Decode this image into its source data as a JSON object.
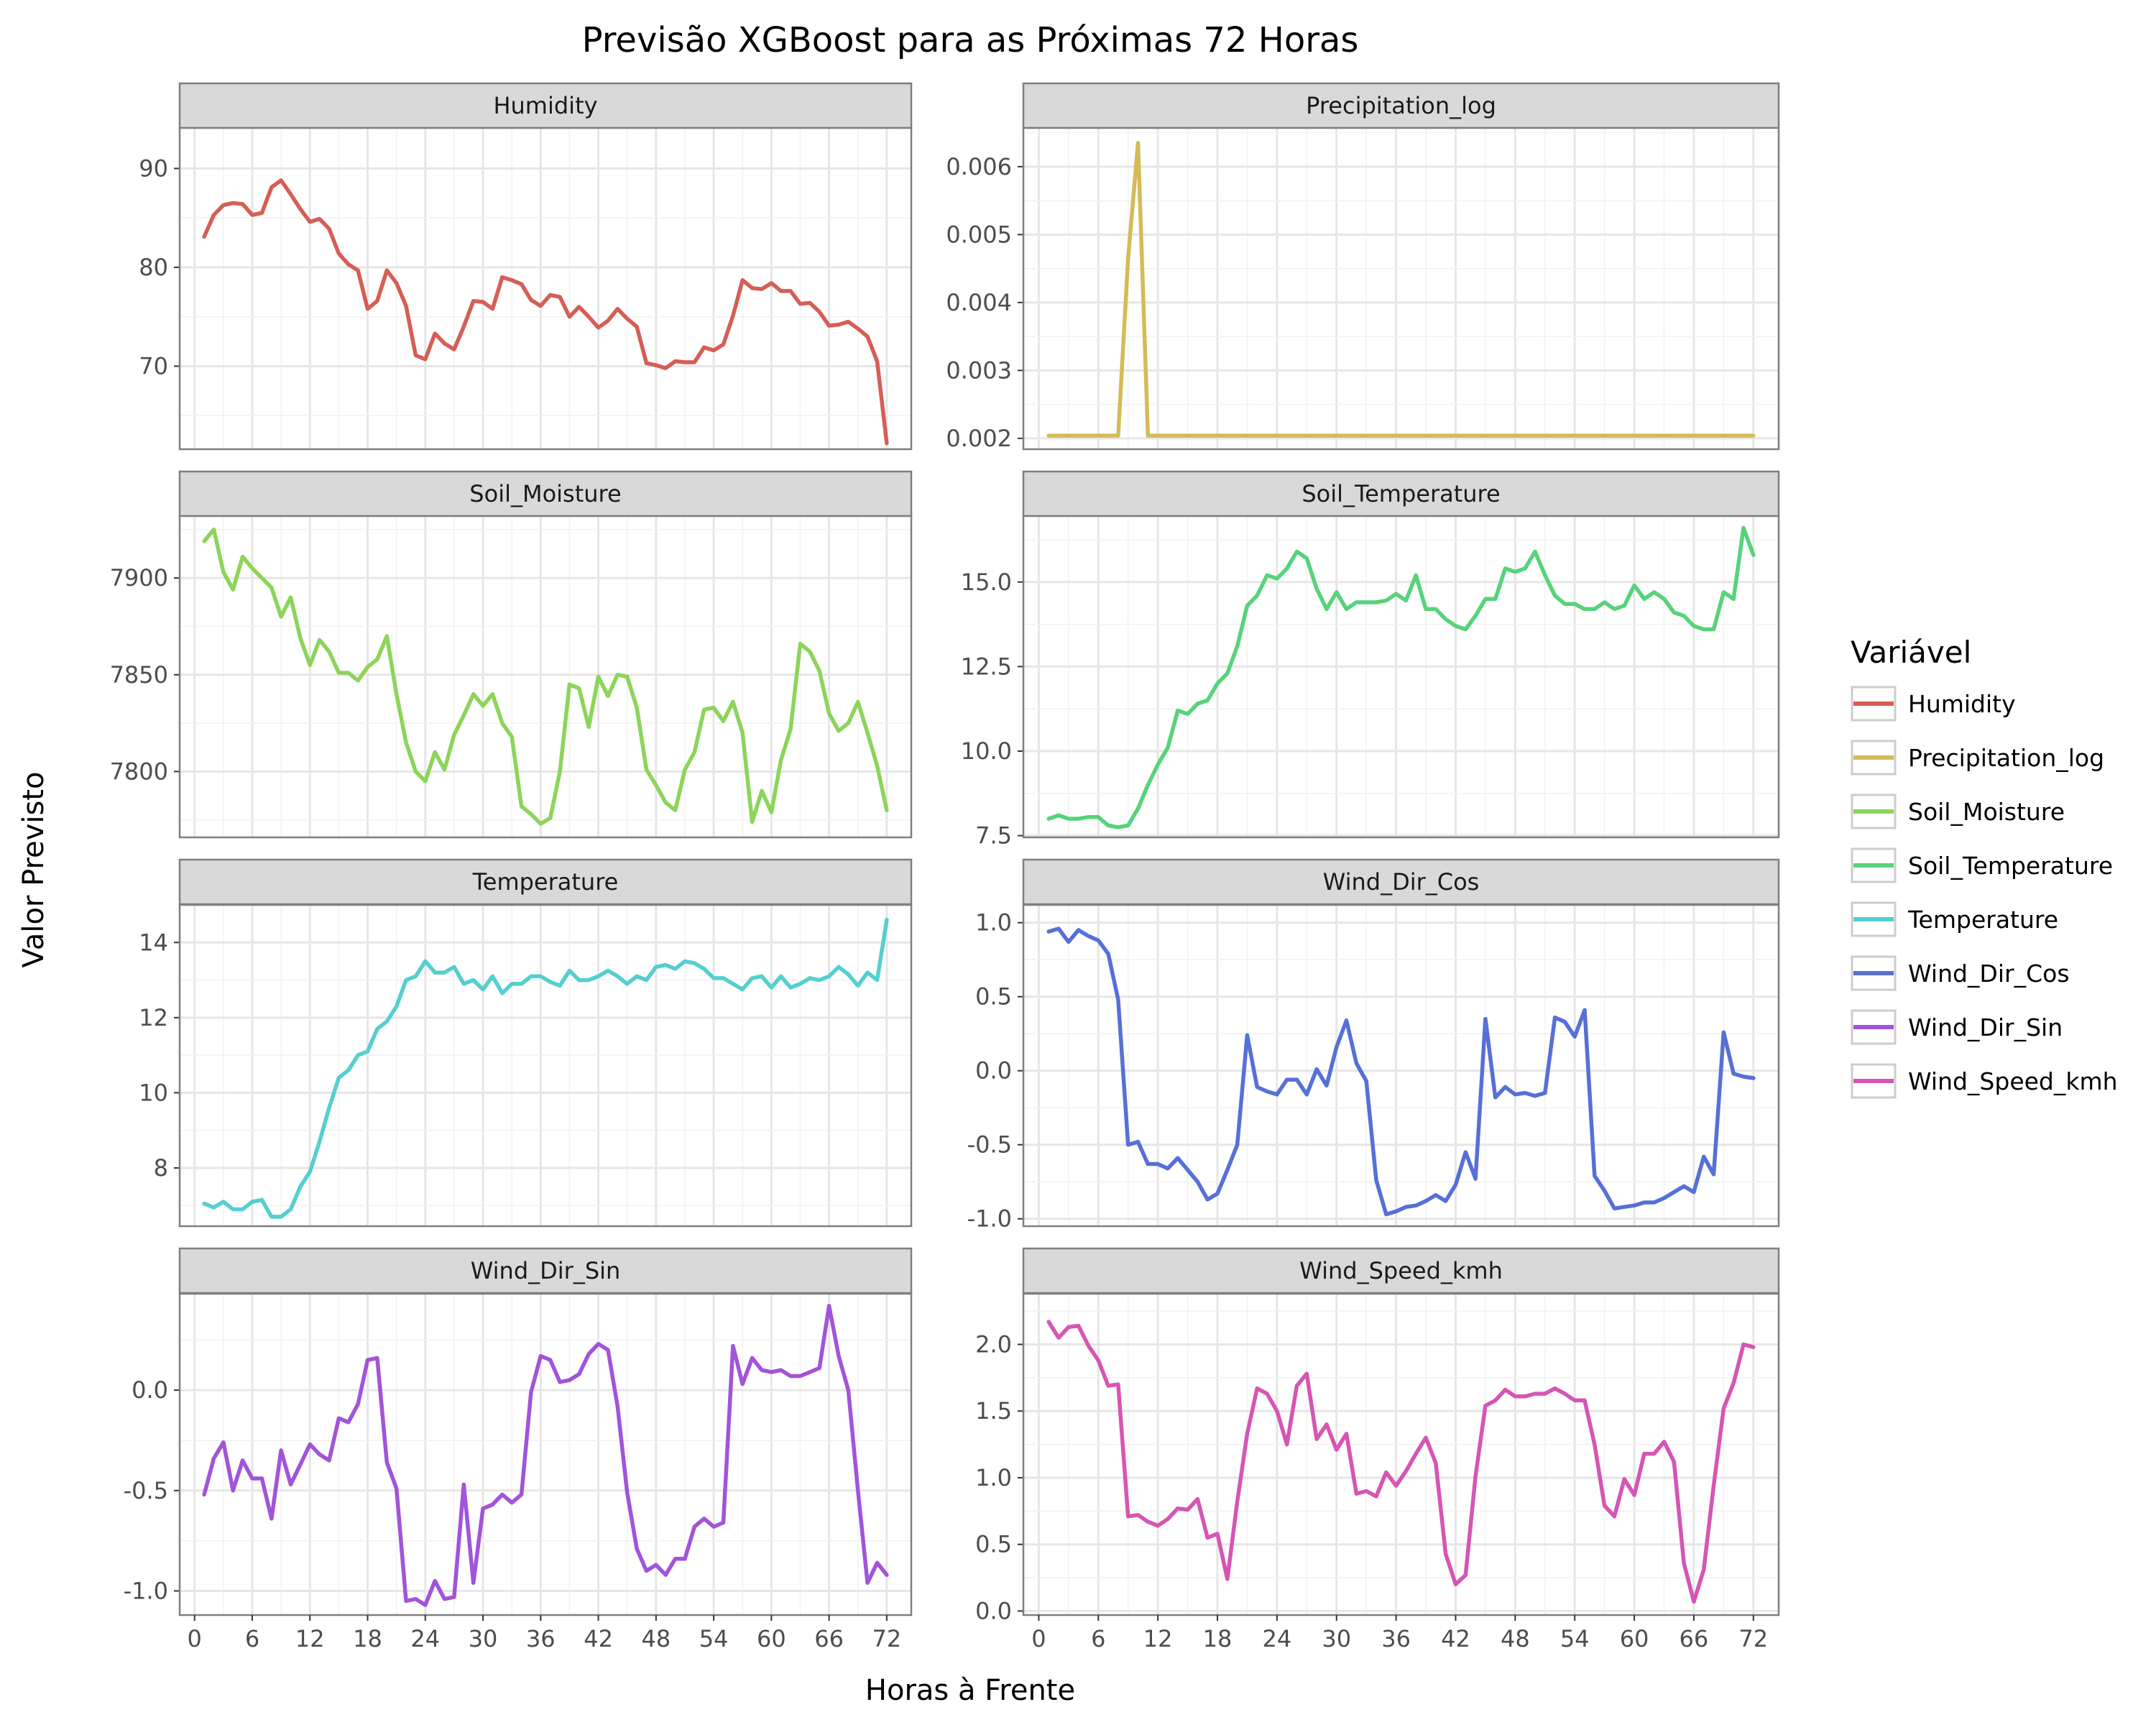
{
  "chart_data": {
    "type": "line",
    "title": "Previsão XGBoost para as Próximas 72 Horas",
    "xlabel": "Horas à Frente",
    "ylabel": "Valor Previsto",
    "legend_title": "Variável",
    "legend_position": "right",
    "grid": true,
    "facet_layout": "4 rows x 2 columns, free y scales",
    "xlim": [
      -1.55,
      74.55
    ],
    "xticks": [
      0,
      6,
      12,
      18,
      24,
      30,
      36,
      42,
      48,
      54,
      60,
      66,
      72
    ],
    "x": [
      1,
      2,
      3,
      4,
      5,
      6,
      7,
      8,
      9,
      10,
      11,
      12,
      13,
      14,
      15,
      16,
      17,
      18,
      19,
      20,
      21,
      22,
      23,
      24,
      25,
      26,
      27,
      28,
      29,
      30,
      31,
      32,
      33,
      34,
      35,
      36,
      37,
      38,
      39,
      40,
      41,
      42,
      43,
      44,
      45,
      46,
      47,
      48,
      49,
      50,
      51,
      52,
      53,
      54,
      55,
      56,
      57,
      58,
      59,
      60,
      61,
      62,
      63,
      64,
      65,
      66,
      67,
      68,
      69,
      70,
      71,
      72
    ],
    "series": [
      {
        "name": "Humidity",
        "color": "#d55e56",
        "ylim": [
          61.6,
          94.1
        ],
        "yticks": [
          70,
          80,
          90
        ],
        "ytick_labels": [
          "70",
          "80",
          "90"
        ],
        "values": [
          83.1,
          85.3,
          86.3,
          86.5,
          86.4,
          85.3,
          85.5,
          88.1,
          88.8,
          87.4,
          85.9,
          84.6,
          84.9,
          83.9,
          81.4,
          80.3,
          79.7,
          75.8,
          76.6,
          79.7,
          78.4,
          76.1,
          71.1,
          70.7,
          73.3,
          72.3,
          71.7,
          74.0,
          76.6,
          76.5,
          75.8,
          79.0,
          78.7,
          78.3,
          76.7,
          76.1,
          77.2,
          77.0,
          75.0,
          76.0,
          75.0,
          73.9,
          74.6,
          75.8,
          74.8,
          74.0,
          70.3,
          70.1,
          69.8,
          70.5,
          70.4,
          70.4,
          71.9,
          71.6,
          72.2,
          75.1,
          78.7,
          77.9,
          77.8,
          78.4,
          77.6,
          77.6,
          76.3,
          76.4,
          75.5,
          74.1,
          74.2,
          74.5,
          73.8,
          73.0,
          70.5,
          62.2
        ]
      },
      {
        "name": "Precipitation_log",
        "color": "#d4bb55",
        "ylim": [
          0.00184,
          0.00657
        ],
        "yticks": [
          0.002,
          0.003,
          0.004,
          0.005,
          0.006
        ],
        "ytick_labels": [
          "0.002",
          "0.003",
          "0.004",
          "0.005",
          "0.006"
        ],
        "values": [
          0.00204,
          0.00204,
          0.00204,
          0.00204,
          0.00204,
          0.00204,
          0.00204,
          0.00204,
          0.00465,
          0.00635,
          0.00204,
          0.00204,
          0.00204,
          0.00204,
          0.00204,
          0.00204,
          0.00204,
          0.00204,
          0.00204,
          0.00204,
          0.00204,
          0.00204,
          0.00204,
          0.00204,
          0.00204,
          0.00204,
          0.00204,
          0.00204,
          0.00204,
          0.00204,
          0.00204,
          0.00204,
          0.00204,
          0.00204,
          0.00204,
          0.00204,
          0.00204,
          0.00204,
          0.00204,
          0.00204,
          0.00204,
          0.00204,
          0.00204,
          0.00204,
          0.00204,
          0.00204,
          0.00204,
          0.00204,
          0.00204,
          0.00204,
          0.00204,
          0.00204,
          0.00204,
          0.00204,
          0.00204,
          0.00204,
          0.00204,
          0.00204,
          0.00204,
          0.00204,
          0.00204,
          0.00204,
          0.00204,
          0.00204,
          0.00204,
          0.00204,
          0.00204,
          0.00204,
          0.00204,
          0.00204,
          0.00204,
          0.00204
        ]
      },
      {
        "name": "Soil_Moisture",
        "color": "#8dd45a",
        "ylim": [
          7766,
          7932
        ],
        "yticks": [
          7800,
          7850,
          7900
        ],
        "ytick_labels": [
          "7800",
          "7850",
          "7900"
        ],
        "values": [
          7919,
          7925,
          7903,
          7894,
          7911,
          7905,
          7900,
          7895,
          7880,
          7890,
          7869,
          7855,
          7868,
          7862,
          7851,
          7851,
          7847,
          7854,
          7858,
          7870,
          7840,
          7815,
          7800,
          7795,
          7810,
          7801,
          7819,
          7829,
          7840,
          7834,
          7840,
          7825,
          7818,
          7782,
          7778,
          7773,
          7776,
          7800,
          7845,
          7843,
          7823,
          7849,
          7839,
          7850,
          7849,
          7833,
          7801,
          7793,
          7784,
          7780,
          7801,
          7810,
          7832,
          7833,
          7826,
          7836,
          7820,
          7774,
          7790,
          7779,
          7806,
          7822,
          7866,
          7862,
          7852,
          7830,
          7821,
          7825,
          7836,
          7820,
          7803,
          7780
        ]
      },
      {
        "name": "Soil_Temperature",
        "color": "#57d37a",
        "ylim": [
          7.45,
          16.95
        ],
        "yticks": [
          7.5,
          10.0,
          12.5,
          15.0
        ],
        "ytick_labels": [
          "7.5",
          "10.0",
          "12.5",
          "15.0"
        ],
        "values": [
          8.0,
          8.1,
          8.0,
          8.0,
          8.05,
          8.05,
          7.8,
          7.75,
          7.8,
          8.3,
          9.0,
          9.6,
          10.1,
          11.2,
          11.1,
          11.4,
          11.5,
          12.0,
          12.3,
          13.1,
          14.3,
          14.6,
          15.2,
          15.1,
          15.4,
          15.9,
          15.7,
          14.8,
          14.2,
          14.7,
          14.2,
          14.4,
          14.4,
          14.4,
          14.45,
          14.65,
          14.45,
          15.2,
          14.2,
          14.2,
          13.9,
          13.7,
          13.6,
          14.0,
          14.5,
          14.5,
          15.4,
          15.3,
          15.4,
          15.9,
          15.2,
          14.6,
          14.35,
          14.35,
          14.2,
          14.2,
          14.4,
          14.2,
          14.3,
          14.9,
          14.5,
          14.7,
          14.5,
          14.1,
          14.0,
          13.7,
          13.6,
          13.6,
          14.7,
          14.5,
          16.6,
          15.8
        ]
      },
      {
        "name": "Temperature",
        "color": "#55cfd0",
        "ylim": [
          6.45,
          15.0
        ],
        "yticks": [
          8,
          10,
          12,
          14
        ],
        "ytick_labels": [
          "8",
          "10",
          "12",
          "14"
        ],
        "values": [
          7.05,
          6.95,
          7.1,
          6.9,
          6.9,
          7.1,
          7.15,
          6.7,
          6.7,
          6.9,
          7.5,
          7.9,
          8.7,
          9.6,
          10.4,
          10.6,
          11.0,
          11.1,
          11.7,
          11.9,
          12.3,
          13.0,
          13.1,
          13.5,
          13.2,
          13.2,
          13.35,
          12.9,
          13.0,
          12.75,
          13.1,
          12.65,
          12.9,
          12.9,
          13.1,
          13.1,
          12.95,
          12.85,
          13.25,
          13.0,
          13.0,
          13.1,
          13.25,
          13.1,
          12.9,
          13.1,
          13.0,
          13.35,
          13.4,
          13.3,
          13.5,
          13.45,
          13.3,
          13.05,
          13.05,
          12.9,
          12.75,
          13.05,
          13.1,
          12.8,
          13.1,
          12.8,
          12.9,
          13.05,
          13.0,
          13.1,
          13.35,
          13.15,
          12.85,
          13.2,
          13.0,
          14.6
        ]
      },
      {
        "name": "Wind_Dir_Cos",
        "color": "#5670d7",
        "ylim": [
          -1.05,
          1.12
        ],
        "yticks": [
          -1.0,
          -0.5,
          0.0,
          0.5,
          1.0
        ],
        "ytick_labels": [
          "-1.0",
          "-0.5",
          "0.0",
          "0.5",
          "1.0"
        ],
        "values": [
          0.94,
          0.96,
          0.87,
          0.95,
          0.91,
          0.88,
          0.79,
          0.48,
          -0.5,
          -0.48,
          -0.63,
          -0.63,
          -0.66,
          -0.59,
          -0.67,
          -0.75,
          -0.87,
          -0.83,
          -0.67,
          -0.5,
          0.24,
          -0.11,
          -0.14,
          -0.16,
          -0.06,
          -0.06,
          -0.16,
          0.01,
          -0.1,
          0.16,
          0.34,
          0.05,
          -0.07,
          -0.74,
          -0.97,
          -0.95,
          -0.92,
          -0.91,
          -0.88,
          -0.84,
          -0.88,
          -0.77,
          -0.55,
          -0.73,
          0.35,
          -0.18,
          -0.11,
          -0.16,
          -0.15,
          -0.17,
          -0.15,
          0.36,
          0.33,
          0.23,
          0.41,
          -0.71,
          -0.81,
          -0.93,
          -0.92,
          -0.91,
          -0.89,
          -0.89,
          -0.86,
          -0.82,
          -0.78,
          -0.82,
          -0.58,
          -0.7,
          0.26,
          -0.02,
          -0.04,
          -0.05
        ]
      },
      {
        "name": "Wind_Dir_Sin",
        "color": "#a154d9",
        "ylim": [
          -1.12,
          0.48
        ],
        "yticks": [
          -1.0,
          -0.5,
          0.0
        ],
        "ytick_labels": [
          "-1.0",
          "-0.5",
          "0.0"
        ],
        "values": [
          -0.52,
          -0.34,
          -0.26,
          -0.5,
          -0.35,
          -0.44,
          -0.44,
          -0.64,
          -0.3,
          -0.47,
          -0.37,
          -0.27,
          -0.32,
          -0.35,
          -0.14,
          -0.16,
          -0.07,
          0.15,
          0.16,
          -0.36,
          -0.49,
          -1.05,
          -1.04,
          -1.07,
          -0.95,
          -1.04,
          -1.03,
          -0.47,
          -0.96,
          -0.59,
          -0.57,
          -0.52,
          -0.56,
          -0.52,
          -0.01,
          0.17,
          0.15,
          0.04,
          0.05,
          0.08,
          0.18,
          0.23,
          0.2,
          -0.08,
          -0.51,
          -0.79,
          -0.9,
          -0.87,
          -0.92,
          -0.84,
          -0.84,
          -0.68,
          -0.64,
          -0.68,
          -0.66,
          0.22,
          0.03,
          0.16,
          0.1,
          0.09,
          0.1,
          0.07,
          0.07,
          0.09,
          0.11,
          0.42,
          0.17,
          0.0,
          -0.5,
          -0.96,
          -0.86,
          -0.92
        ]
      },
      {
        "name": "Wind_Speed_kmh",
        "color": "#d655b3",
        "ylim": [
          -0.03,
          2.38
        ],
        "yticks": [
          0.0,
          0.5,
          1.0,
          1.5,
          2.0
        ],
        "ytick_labels": [
          "0.0",
          "0.5",
          "1.0",
          "1.5",
          "2.0"
        ],
        "values": [
          2.17,
          2.05,
          2.13,
          2.14,
          1.99,
          1.88,
          1.69,
          1.7,
          0.71,
          0.72,
          0.67,
          0.64,
          0.69,
          0.77,
          0.76,
          0.84,
          0.55,
          0.58,
          0.24,
          0.82,
          1.33,
          1.67,
          1.63,
          1.5,
          1.25,
          1.69,
          1.78,
          1.29,
          1.4,
          1.21,
          1.33,
          0.88,
          0.9,
          0.86,
          1.04,
          0.94,
          1.05,
          1.18,
          1.3,
          1.11,
          0.43,
          0.2,
          0.27,
          1.01,
          1.54,
          1.58,
          1.66,
          1.61,
          1.61,
          1.63,
          1.63,
          1.67,
          1.63,
          1.58,
          1.58,
          1.25,
          0.79,
          0.71,
          0.99,
          0.87,
          1.18,
          1.18,
          1.27,
          1.12,
          0.36,
          0.07,
          0.31,
          0.94,
          1.52,
          1.71,
          2.0,
          1.98
        ]
      }
    ]
  }
}
